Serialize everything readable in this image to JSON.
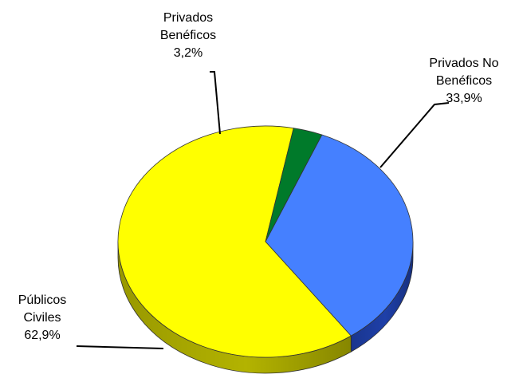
{
  "chart_data": {
    "type": "pie",
    "style": "3d",
    "title": "",
    "slices": [
      {
        "label": "Privados No Beneficos",
        "label_lines": [
          "Privados No",
          "Benéficos",
          "33,9%"
        ],
        "value": 33.9,
        "value_label": "33,9%",
        "color": "#4580ff",
        "side_color": "#1e3fa8"
      },
      {
        "label": "Publicos Civiles",
        "label_lines": [
          "Públicos",
          "Civiles",
          "62,9%"
        ],
        "value": 62.9,
        "value_label": "62,9%",
        "color": "#ffff00",
        "side_color": "#b3b300"
      },
      {
        "label": "Privados Beneficos",
        "label_lines": [
          "Privados",
          "Benéficos",
          "3,2%"
        ],
        "value": 3.2,
        "value_label": "3,2%",
        "color": "#007a2a",
        "side_color": "#004d1a"
      }
    ]
  }
}
